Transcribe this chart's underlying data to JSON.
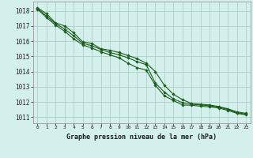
{
  "title": "Graphe pression niveau de la mer (hPa)",
  "background_color": "#d4f0ec",
  "grid_color": "#a8c8c0",
  "line_color": "#1a5c1a",
  "xlim": [
    -0.5,
    23.5
  ],
  "ylim": [
    1010.6,
    1018.6
  ],
  "yticks": [
    1011,
    1012,
    1013,
    1014,
    1015,
    1016,
    1017,
    1018
  ],
  "xticks": [
    0,
    1,
    2,
    3,
    4,
    5,
    6,
    7,
    8,
    9,
    10,
    11,
    12,
    13,
    14,
    15,
    16,
    17,
    18,
    19,
    20,
    21,
    22,
    23
  ],
  "series": [
    [
      1018.2,
      1017.8,
      1017.2,
      1017.0,
      1016.55,
      1015.95,
      1015.85,
      1015.5,
      1015.4,
      1015.25,
      1015.05,
      1014.85,
      1014.55,
      1014.0,
      1013.1,
      1012.5,
      1012.15,
      1011.9,
      1011.85,
      1011.8,
      1011.7,
      1011.55,
      1011.35,
      1011.25
    ],
    [
      1018.15,
      1017.65,
      1017.15,
      1016.8,
      1016.35,
      1015.85,
      1015.7,
      1015.45,
      1015.25,
      1015.1,
      1014.9,
      1014.65,
      1014.45,
      1013.25,
      1012.65,
      1012.2,
      1011.95,
      1011.85,
      1011.8,
      1011.75,
      1011.65,
      1011.5,
      1011.3,
      1011.2
    ],
    [
      1018.1,
      1017.55,
      1017.05,
      1016.65,
      1016.15,
      1015.75,
      1015.55,
      1015.3,
      1015.1,
      1014.9,
      1014.55,
      1014.25,
      1014.1,
      1013.1,
      1012.4,
      1012.1,
      1011.8,
      1011.78,
      1011.72,
      1011.68,
      1011.6,
      1011.45,
      1011.25,
      1011.15
    ]
  ]
}
